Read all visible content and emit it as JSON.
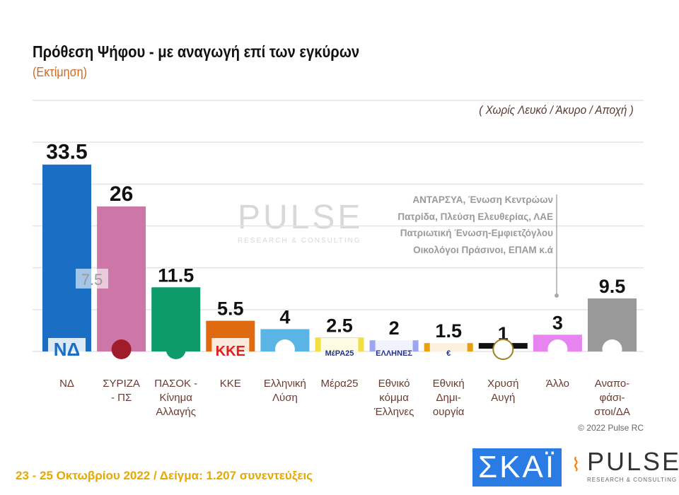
{
  "chart_data": {
    "type": "bar",
    "title": "Πρόθεση Ψήφου - με αναγωγή επί των εγκύρων",
    "subtitle": "(Εκτίμηση)",
    "note": "( Χωρίς Λευκό / Άκυρο / Αποχή )",
    "categories": [
      "ΝΔ",
      "ΣΥΡΙΖΑ - ΠΣ",
      "ΠΑΣΟΚ - Κίνημα Αλλαγής",
      "ΚΚΕ",
      "Ελληνική Λύση",
      "Μέρα25",
      "Εθνικό κόμμα Έλληνες",
      "Εθνική Δημι-ουργία",
      "Χρυσή Αυγή",
      "Άλλο",
      "Αναπο-φάσι-στοι/ΔΑ"
    ],
    "labels_lines": [
      [
        "ΝΔ"
      ],
      [
        "ΣΥΡΙΖΑ",
        "- ΠΣ"
      ],
      [
        "ΠΑΣΟΚ -",
        "Κίνημα",
        "Αλλαγής"
      ],
      [
        "ΚΚΕ"
      ],
      [
        "Ελληνική",
        "Λύση"
      ],
      [
        "Μέρα25"
      ],
      [
        "Εθνικό",
        "κόμμα",
        "Έλληνες"
      ],
      [
        "Εθνική",
        "Δημι-",
        "ουργία"
      ],
      [
        "Χρυσή",
        "Αυγή"
      ],
      [
        "Άλλο"
      ],
      [
        "Αναπο-",
        "φάσι-",
        "στοι/ΔΑ"
      ]
    ],
    "values": [
      33.5,
      26,
      11.5,
      5.5,
      4,
      2.5,
      2,
      1.5,
      1,
      3,
      9.5
    ],
    "value_labels": [
      "33.5",
      "26",
      "11.5",
      "5.5",
      "4",
      "2.5",
      "2",
      "1.5",
      "1",
      "3",
      "9.5"
    ],
    "colors": [
      "#1a6fc4",
      "#cc77a8",
      "#0e9b6a",
      "#e06a10",
      "#5ab4e6",
      "#f0e040",
      "#9aa6f0",
      "#e8a010",
      "#111111",
      "#e884f0",
      "#999999"
    ],
    "logos": [
      "ΝΔ",
      "",
      "",
      "ΚΚΕ",
      "",
      "ΜέΡΑ25",
      "ΕΛΛΗΝΕΣ",
      "€",
      "",
      "",
      ""
    ],
    "gap_annotation": "7.5",
    "ylim": [
      0,
      45
    ],
    "grid": true,
    "others_note": [
      "ΑΝΤΑΡΣΥΑ, Ένωση Κεντρώων",
      "Πατρίδα, Πλεύση Ελευθερίας, ΛΑΕ",
      "Πατριωτική Ένωση-Εμφιετζόγλου",
      "Οικολόγοι Πράσινοι, ΕΠΑΜ  κ.ά"
    ]
  },
  "watermark": {
    "name": "PULSE",
    "tagline": "RESEARCH & CONSULTING"
  },
  "copyright": "© 2022 Pulse RC",
  "footer": "23 - 25  Οκτωβρίου  2022  /  Δείγμα:  1.207 συνεντεύξεις",
  "logos": {
    "skai": "ΣΚΑΪ",
    "pulse": "PULSE",
    "pulse_tagline": "RESEARCH & CONSULTING"
  }
}
